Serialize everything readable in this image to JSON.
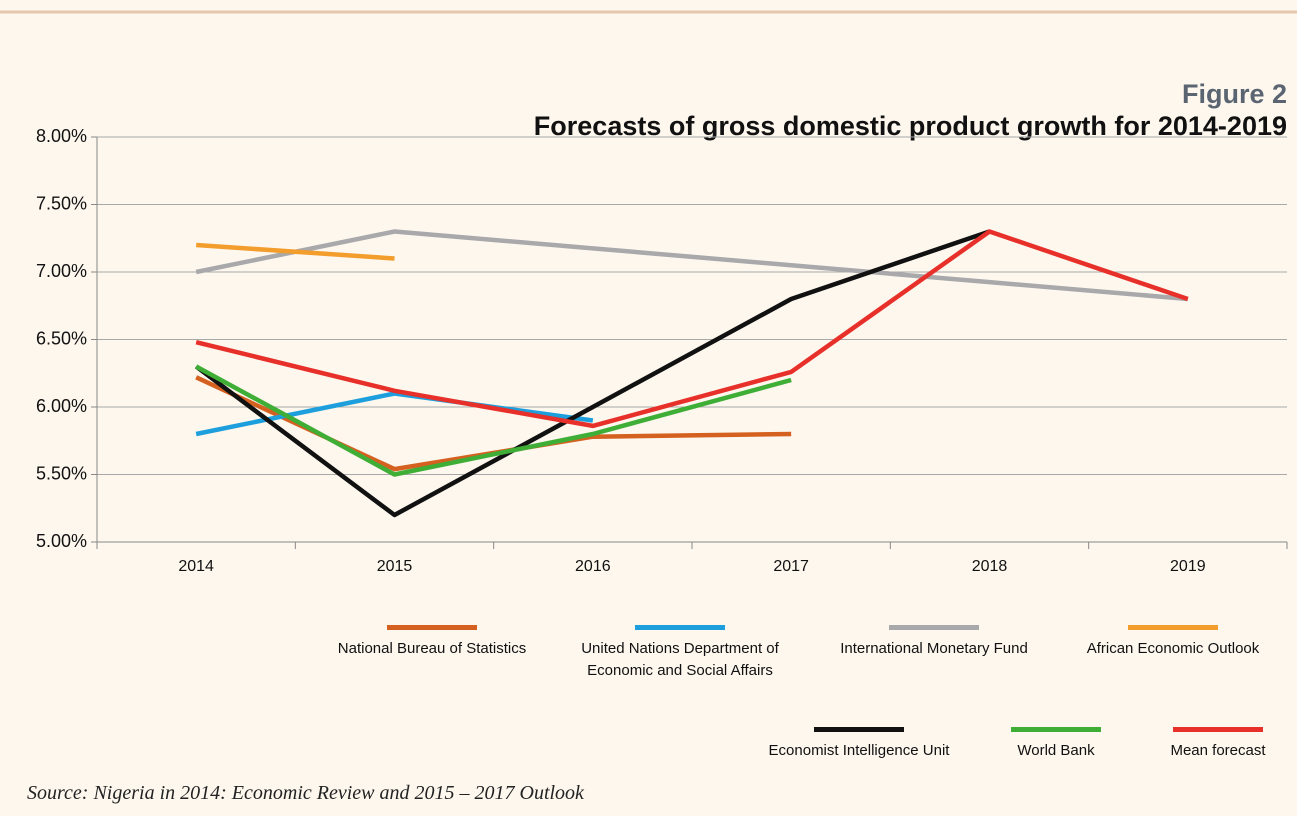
{
  "chart_data": {
    "type": "line",
    "figure_label": "Figure 2",
    "title": "Forecasts of gross domestic product growth for 2014-2019",
    "categories": [
      "2014",
      "2015",
      "2016",
      "2017",
      "2018",
      "2019"
    ],
    "ylim": [
      5,
      8
    ],
    "yticks": [
      {
        "value": 5,
        "label": "5.00%"
      },
      {
        "value": 5.5,
        "label": "5.50%"
      },
      {
        "value": 6,
        "label": "6.00%"
      },
      {
        "value": 6.5,
        "label": "6.50%"
      },
      {
        "value": 7,
        "label": "7.00%"
      },
      {
        "value": 7.5,
        "label": "7.50%"
      },
      {
        "value": 8,
        "label": "8.00%"
      }
    ],
    "grid": true,
    "series": [
      {
        "name": "National Bureau of Statistics",
        "color": "#d4611f",
        "values": [
          6.22,
          5.54,
          5.78,
          5.8,
          null,
          null
        ]
      },
      {
        "name": "United Nations Department of Economic and Social Affairs",
        "color": "#1c9fdc",
        "values": [
          5.8,
          6.1,
          5.9,
          null,
          null,
          null
        ]
      },
      {
        "name": "International Monetary Fund",
        "color": "#a9a9ab",
        "values": [
          7.0,
          7.3,
          7.175,
          7.05,
          6.925,
          6.8
        ]
      },
      {
        "name": "African Economic Outlook",
        "color": "#f29d2c",
        "values": [
          7.2,
          7.1,
          null,
          null,
          null,
          null
        ]
      },
      {
        "name": "Economist Intelligence Unit",
        "color": "#111111",
        "values": [
          6.3,
          5.2,
          6.0,
          6.8,
          7.3,
          null
        ]
      },
      {
        "name": "World Bank",
        "color": "#3fae36",
        "values": [
          6.3,
          5.5,
          5.8,
          6.2,
          null,
          null
        ]
      },
      {
        "name": "Mean forecast",
        "color": "#e8302a",
        "values": [
          6.48,
          6.12,
          5.86,
          6.26,
          7.3,
          6.8
        ]
      }
    ],
    "source": "Source: Nigeria in 2014: Economic Review and 2015 – 2017 Outlook"
  }
}
